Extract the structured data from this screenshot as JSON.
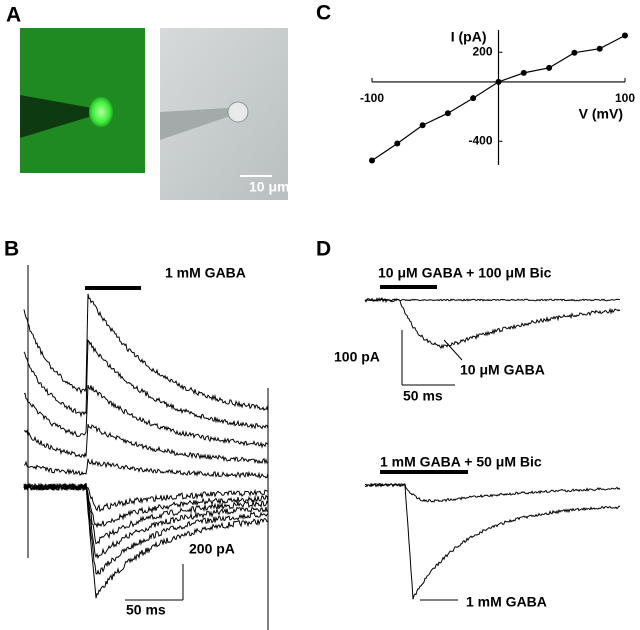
{
  "panel_labels": [
    "A",
    "B",
    "C",
    "D"
  ],
  "panel_a": {
    "scale_label": "10 μm"
  },
  "panel_b": {
    "stimulus": "1 mM GABA",
    "scale_y": "200 pA",
    "scale_x": "50 ms"
  },
  "panel_d": {
    "top_stimulus": "10 μM GABA + 100 μM Bic",
    "top_trace_label": "10 μM GABA",
    "scale_y": "100 pA",
    "scale_x": "50 ms",
    "bottom_stimulus": "1 mM GABA + 50 μM Bic",
    "bottom_trace_label": "1 mM GABA"
  },
  "chart_data": {
    "type": "line",
    "xlabel": "V (mV)",
    "ylabel": "I (pA)",
    "x": [
      -100,
      -80,
      -60,
      -40,
      -20,
      0,
      20,
      40,
      60,
      80,
      100
    ],
    "values": [
      -530,
      -415,
      -292,
      -211,
      -109,
      0,
      61,
      95,
      197,
      224,
      313
    ],
    "color": "#000000",
    "xlim": [
      -100,
      100
    ],
    "ylim": [
      -560,
      350
    ],
    "xticks": [
      -100,
      100
    ],
    "yticks": [
      -400,
      200
    ]
  }
}
